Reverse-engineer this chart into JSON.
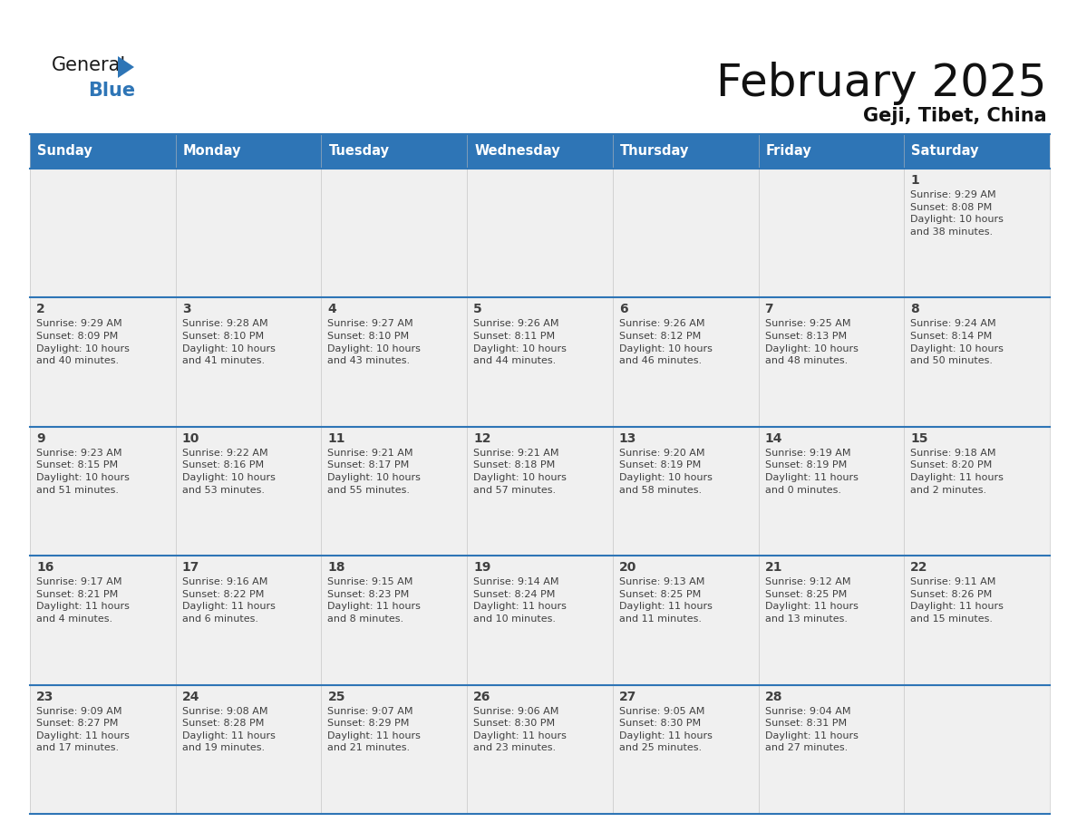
{
  "title": "February 2025",
  "subtitle": "Geji, Tibet, China",
  "days_of_week": [
    "Sunday",
    "Monday",
    "Tuesday",
    "Wednesday",
    "Thursday",
    "Friday",
    "Saturday"
  ],
  "header_bg": "#2E75B6",
  "header_text": "#FFFFFF",
  "cell_bg": "#F0F0F0",
  "border_color": "#2E75B6",
  "text_color": "#404040",
  "calendar_data": [
    [
      null,
      null,
      null,
      null,
      null,
      null,
      {
        "day": "1",
        "sunrise": "9:29 AM",
        "sunset": "8:08 PM",
        "daylight_h": "10 hours",
        "daylight_m": "38 minutes"
      }
    ],
    [
      {
        "day": "2",
        "sunrise": "9:29 AM",
        "sunset": "8:09 PM",
        "daylight_h": "10 hours",
        "daylight_m": "40 minutes"
      },
      {
        "day": "3",
        "sunrise": "9:28 AM",
        "sunset": "8:10 PM",
        "daylight_h": "10 hours",
        "daylight_m": "41 minutes"
      },
      {
        "day": "4",
        "sunrise": "9:27 AM",
        "sunset": "8:10 PM",
        "daylight_h": "10 hours",
        "daylight_m": "43 minutes"
      },
      {
        "day": "5",
        "sunrise": "9:26 AM",
        "sunset": "8:11 PM",
        "daylight_h": "10 hours",
        "daylight_m": "44 minutes"
      },
      {
        "day": "6",
        "sunrise": "9:26 AM",
        "sunset": "8:12 PM",
        "daylight_h": "10 hours",
        "daylight_m": "46 minutes"
      },
      {
        "day": "7",
        "sunrise": "9:25 AM",
        "sunset": "8:13 PM",
        "daylight_h": "10 hours",
        "daylight_m": "48 minutes"
      },
      {
        "day": "8",
        "sunrise": "9:24 AM",
        "sunset": "8:14 PM",
        "daylight_h": "10 hours",
        "daylight_m": "50 minutes"
      }
    ],
    [
      {
        "day": "9",
        "sunrise": "9:23 AM",
        "sunset": "8:15 PM",
        "daylight_h": "10 hours",
        "daylight_m": "51 minutes"
      },
      {
        "day": "10",
        "sunrise": "9:22 AM",
        "sunset": "8:16 PM",
        "daylight_h": "10 hours",
        "daylight_m": "53 minutes"
      },
      {
        "day": "11",
        "sunrise": "9:21 AM",
        "sunset": "8:17 PM",
        "daylight_h": "10 hours",
        "daylight_m": "55 minutes"
      },
      {
        "day": "12",
        "sunrise": "9:21 AM",
        "sunset": "8:18 PM",
        "daylight_h": "10 hours",
        "daylight_m": "57 minutes"
      },
      {
        "day": "13",
        "sunrise": "9:20 AM",
        "sunset": "8:19 PM",
        "daylight_h": "10 hours",
        "daylight_m": "58 minutes"
      },
      {
        "day": "14",
        "sunrise": "9:19 AM",
        "sunset": "8:19 PM",
        "daylight_h": "11 hours",
        "daylight_m": "0 minutes"
      },
      {
        "day": "15",
        "sunrise": "9:18 AM",
        "sunset": "8:20 PM",
        "daylight_h": "11 hours",
        "daylight_m": "2 minutes"
      }
    ],
    [
      {
        "day": "16",
        "sunrise": "9:17 AM",
        "sunset": "8:21 PM",
        "daylight_h": "11 hours",
        "daylight_m": "4 minutes"
      },
      {
        "day": "17",
        "sunrise": "9:16 AM",
        "sunset": "8:22 PM",
        "daylight_h": "11 hours",
        "daylight_m": "6 minutes"
      },
      {
        "day": "18",
        "sunrise": "9:15 AM",
        "sunset": "8:23 PM",
        "daylight_h": "11 hours",
        "daylight_m": "8 minutes"
      },
      {
        "day": "19",
        "sunrise": "9:14 AM",
        "sunset": "8:24 PM",
        "daylight_h": "11 hours",
        "daylight_m": "10 minutes"
      },
      {
        "day": "20",
        "sunrise": "9:13 AM",
        "sunset": "8:25 PM",
        "daylight_h": "11 hours",
        "daylight_m": "11 minutes"
      },
      {
        "day": "21",
        "sunrise": "9:12 AM",
        "sunset": "8:25 PM",
        "daylight_h": "11 hours",
        "daylight_m": "13 minutes"
      },
      {
        "day": "22",
        "sunrise": "9:11 AM",
        "sunset": "8:26 PM",
        "daylight_h": "11 hours",
        "daylight_m": "15 minutes"
      }
    ],
    [
      {
        "day": "23",
        "sunrise": "9:09 AM",
        "sunset": "8:27 PM",
        "daylight_h": "11 hours",
        "daylight_m": "17 minutes"
      },
      {
        "day": "24",
        "sunrise": "9:08 AM",
        "sunset": "8:28 PM",
        "daylight_h": "11 hours",
        "daylight_m": "19 minutes"
      },
      {
        "day": "25",
        "sunrise": "9:07 AM",
        "sunset": "8:29 PM",
        "daylight_h": "11 hours",
        "daylight_m": "21 minutes"
      },
      {
        "day": "26",
        "sunrise": "9:06 AM",
        "sunset": "8:30 PM",
        "daylight_h": "11 hours",
        "daylight_m": "23 minutes"
      },
      {
        "day": "27",
        "sunrise": "9:05 AM",
        "sunset": "8:30 PM",
        "daylight_h": "11 hours",
        "daylight_m": "25 minutes"
      },
      {
        "day": "28",
        "sunrise": "9:04 AM",
        "sunset": "8:31 PM",
        "daylight_h": "11 hours",
        "daylight_m": "27 minutes"
      },
      null
    ]
  ],
  "logo_color_general": "#1a1a1a",
  "logo_color_blue": "#2E75B6",
  "logo_triangle_color": "#2E75B6"
}
